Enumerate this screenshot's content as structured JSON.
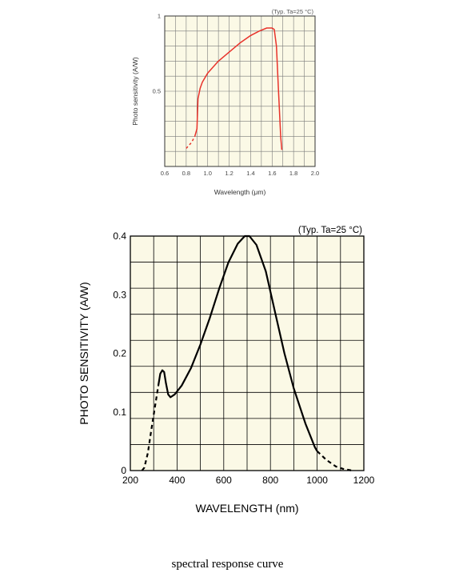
{
  "chart_data": [
    {
      "type": "line",
      "note": "(Typ. Ta=25 °C)",
      "xlabel": "Wavelength (μm)",
      "ylabel": "Photo sensitivity (A/W)",
      "xlim": [
        0.6,
        2.0
      ],
      "ylim": [
        0,
        1
      ],
      "x_ticks": [
        "0.6",
        "0.8",
        "1.0",
        "1.2",
        "1.4",
        "1.6",
        "1.8",
        "2.0"
      ],
      "y_ticks": [
        "0.5",
        "1"
      ],
      "grid": true,
      "background": "#fbf9e6",
      "line_color": "#e8322a",
      "series": [
        {
          "dashed": [
            [
              0.8,
              0.12
            ],
            [
              0.85,
              0.16
            ],
            [
              0.88,
              0.2
            ]
          ],
          "solid": [
            [
              0.88,
              0.2
            ],
            [
              0.9,
              0.25
            ],
            [
              0.91,
              0.45
            ],
            [
              0.93,
              0.52
            ],
            [
              0.95,
              0.56
            ],
            [
              1.0,
              0.62
            ],
            [
              1.1,
              0.7
            ],
            [
              1.2,
              0.76
            ],
            [
              1.3,
              0.82
            ],
            [
              1.4,
              0.87
            ],
            [
              1.48,
              0.9
            ],
            [
              1.55,
              0.92
            ],
            [
              1.6,
              0.92
            ],
            [
              1.62,
              0.91
            ],
            [
              1.64,
              0.8
            ],
            [
              1.66,
              0.5
            ],
            [
              1.68,
              0.2
            ],
            [
              1.69,
              0.11
            ]
          ]
        }
      ]
    },
    {
      "type": "line",
      "note": "(Typ. Ta=25 °C)",
      "xlabel": "WAVELENGTH (nm)",
      "ylabel": "PHOTO SENSITIVITY (A/W)",
      "xlim": [
        200,
        1200
      ],
      "ylim": [
        0,
        0.4
      ],
      "x_ticks": [
        "200",
        "400",
        "600",
        "800",
        "1000",
        "1200"
      ],
      "y_ticks": [
        "0",
        "0.1",
        "0.2",
        "0.3",
        "0.4"
      ],
      "grid": true,
      "background": "#fbf9e6",
      "line_color": "#000000",
      "series": [
        {
          "dashed_start": [
            [
              250,
              0
            ],
            [
              260,
              0.005
            ],
            [
              275,
              0.03
            ],
            [
              290,
              0.07
            ],
            [
              310,
              0.12
            ],
            [
              320,
              0.145
            ]
          ],
          "solid": [
            [
              320,
              0.145
            ],
            [
              328,
              0.165
            ],
            [
              337,
              0.171
            ],
            [
              345,
              0.168
            ],
            [
              352,
              0.15
            ],
            [
              362,
              0.13
            ],
            [
              372,
              0.125
            ],
            [
              390,
              0.13
            ],
            [
              420,
              0.145
            ],
            [
              460,
              0.175
            ],
            [
              500,
              0.215
            ],
            [
              540,
              0.26
            ],
            [
              580,
              0.31
            ],
            [
              620,
              0.355
            ],
            [
              660,
              0.387
            ],
            [
              690,
              0.4
            ],
            [
              710,
              0.4
            ],
            [
              740,
              0.385
            ],
            [
              780,
              0.34
            ],
            [
              820,
              0.27
            ],
            [
              860,
              0.2
            ],
            [
              900,
              0.14
            ],
            [
              950,
              0.08
            ],
            [
              990,
              0.04
            ],
            [
              1000,
              0.033
            ]
          ],
          "dashed_end": [
            [
              1000,
              0.033
            ],
            [
              1040,
              0.018
            ],
            [
              1080,
              0.007
            ],
            [
              1110,
              0.003
            ],
            [
              1150,
              0
            ]
          ]
        }
      ]
    }
  ],
  "caption": "spectral response curve"
}
